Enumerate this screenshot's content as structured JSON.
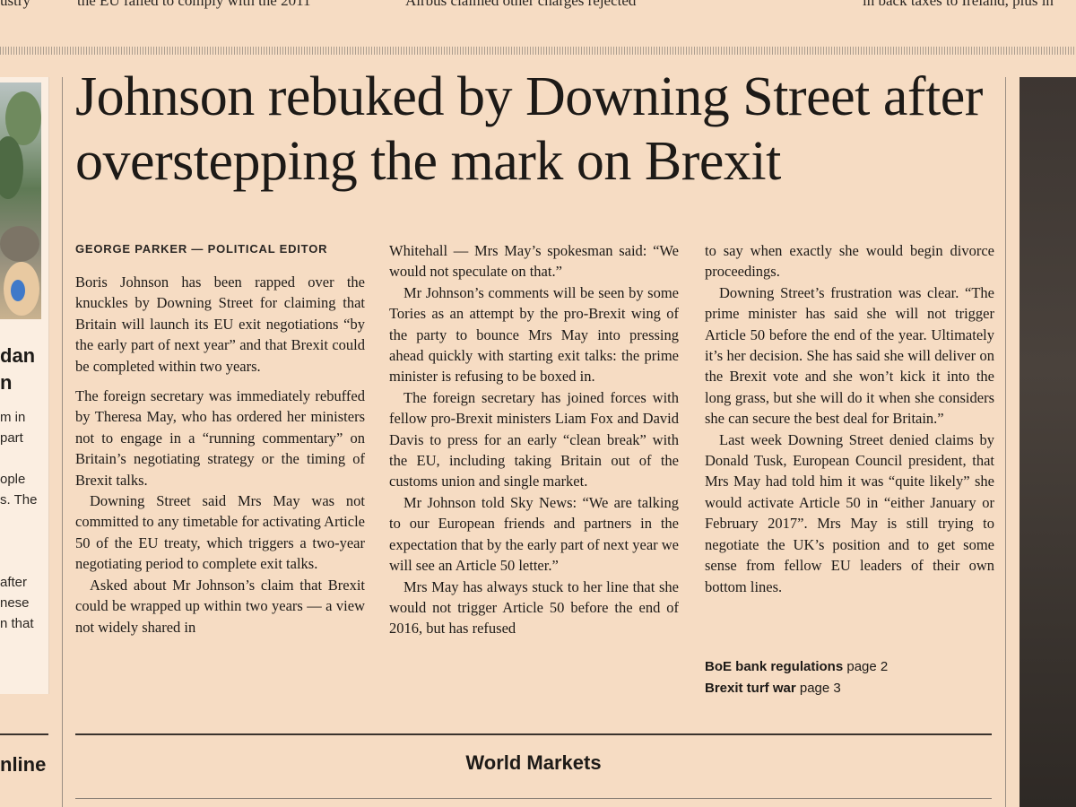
{
  "top_strip": [
    "ustry",
    "the EU failed to comply with the 2011",
    "Airbus claimed other charges rejected",
    "in back taxes to Ireland, plus in"
  ],
  "sidebar": {
    "headline_fragments": [
      "dan",
      "n"
    ],
    "text_fragments": [
      "m in",
      "part",
      "ople",
      "s. The",
      "after",
      "nese",
      "n that"
    ],
    "online_label": "nline"
  },
  "article": {
    "headline": "Johnson rebuked by Downing Street after overstepping the mark on Brexit",
    "byline": "GEORGE PARKER — POLITICAL EDITOR",
    "columns": [
      [
        "Boris Johnson has been rapped over the knuckles by Downing Street for claiming that Britain will launch its EU exit negotiations “by the early part of next year” and that Brexit could be completed within two years.",
        "The foreign secretary was immediately rebuffed by Theresa May, who has ordered her ministers not to engage in a “running commentary” on Britain’s negotiating strategy or the timing of Brexit talks.",
        "Downing Street said Mrs May was not committed to any timetable for activating Article 50 of the EU treaty, which triggers a two-year negotiating period to complete exit talks.",
        "Asked about Mr Johnson’s claim that Brexit could be wrapped up within two years — a view not widely shared in"
      ],
      [
        "Whitehall — Mrs May’s spokesman said: “We would not speculate on that.”",
        "Mr Johnson’s comments will be seen by some Tories as an attempt by the pro-Brexit wing of the party to bounce Mrs May into pressing ahead quickly with starting exit talks: the prime minister is refusing to be boxed in.",
        "The foreign secretary has joined forces with fellow pro-Brexit ministers Liam Fox and David Davis to press for an early “clean break” with the EU, including taking Britain out of the customs union and single market.",
        "Mr Johnson told Sky News: “We are talking to our European friends and partners in the expectation that by the early part of next year we will see an Article 50 letter.”",
        "Mrs May has always stuck to her line that she would not trigger Article 50 before the end of 2016, but has refused"
      ],
      [
        "to say when exactly she would begin divorce proceedings.",
        "Downing Street’s frustration was clear. “The prime minister has said she will not trigger Article 50 before the end of the year. Ultimately it’s her decision. She has said she will deliver on the Brexit vote and she won’t kick it into the long grass, but she will do it when she considers she can secure the best deal for Britain.”",
        "Last week Downing Street denied claims by Donald Tusk, European Council president, that Mrs May had told him it was “quite likely” she would activate Article 50 in “either January or February 2017”. Mrs May is still trying to negotiate the UK’s position and to get some sense from fellow EU leaders of their own bottom lines."
      ]
    ],
    "cross_refs": [
      {
        "title": "BoE bank regulations",
        "page": "page 2"
      },
      {
        "title": "Brexit turf war",
        "page": "page 3"
      }
    ]
  },
  "world_markets": {
    "title": "World Markets"
  },
  "colors": {
    "paper": "#f6dcc3",
    "ink": "#1d1a17",
    "rule": "#3a332d"
  }
}
